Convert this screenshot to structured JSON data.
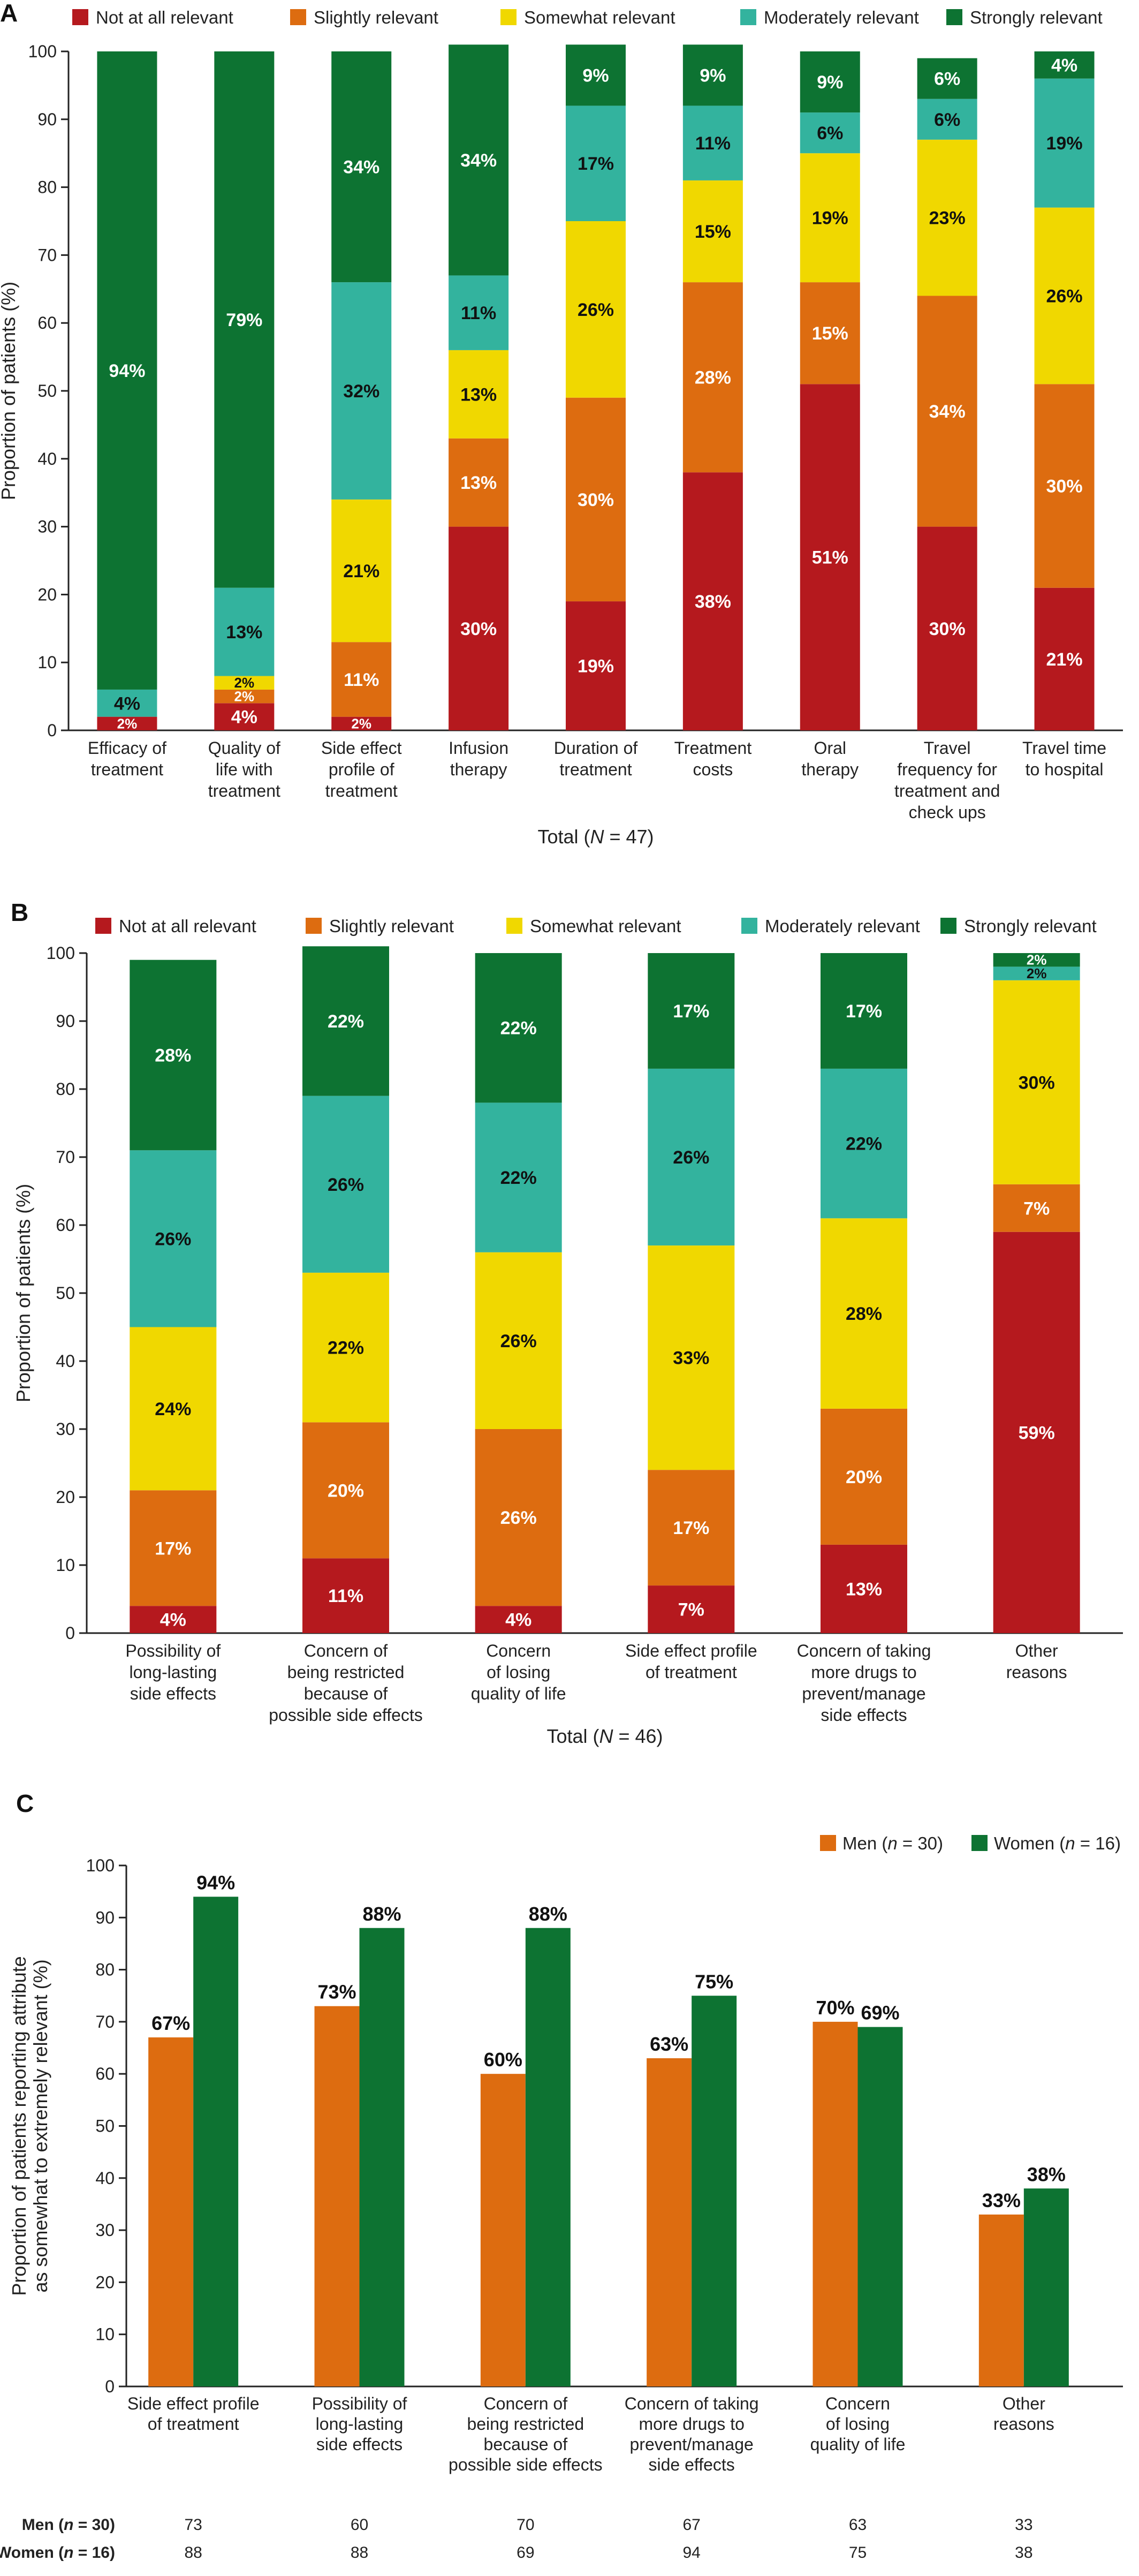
{
  "colors": {
    "not_at_all": "#b5191e",
    "slightly": "#dd6c10",
    "somewhat": "#f0d800",
    "moderately": "#33b39e",
    "strongly": "#0d7332",
    "men": "#dd6c10",
    "women": "#0d7332"
  },
  "chart_data": [
    {
      "panel": "A",
      "type": "bar",
      "stacked": true,
      "ylabel": "Proportion of patients (%)",
      "xlabel": "Total (N = 47)",
      "xlabel_parts": {
        "pre": "Total (",
        "italic": "N",
        "post": " = 47)"
      },
      "ylim": [
        0,
        100
      ],
      "yticks": [
        "0",
        "10",
        "20",
        "30",
        "40",
        "50",
        "60",
        "70",
        "80",
        "90",
        "100"
      ],
      "legend_position": "top",
      "categories": [
        [
          "Efficacy of",
          "treatment"
        ],
        [
          "Quality of",
          "life with",
          "treatment"
        ],
        [
          "Side effect",
          "profile of",
          "treatment"
        ],
        [
          "Infusion",
          "therapy"
        ],
        [
          "Duration of",
          "treatment"
        ],
        [
          "Treatment",
          "costs"
        ],
        [
          "Oral",
          "therapy"
        ],
        [
          "Travel",
          "frequency for",
          "treatment and",
          "check ups"
        ],
        [
          "Travel time",
          "to hospital"
        ]
      ],
      "series": [
        {
          "name": "Not at all relevant",
          "color_key": "not_at_all",
          "values": [
            2,
            4,
            2,
            30,
            19,
            38,
            51,
            30,
            21
          ],
          "labels": [
            "2%",
            "4%",
            "2%",
            "30%",
            "19%",
            "38%",
            "51%",
            "30%",
            "21%"
          ]
        },
        {
          "name": "Slightly relevant",
          "color_key": "slightly",
          "values": [
            0,
            2,
            11,
            13,
            30,
            28,
            15,
            34,
            30
          ],
          "labels": [
            "",
            "2%",
            "11%",
            "13%",
            "30%",
            "28%",
            "15%",
            "34%",
            "30%"
          ]
        },
        {
          "name": "Somewhat relevant",
          "color_key": "somewhat",
          "values": [
            0,
            2,
            21,
            13,
            26,
            15,
            19,
            23,
            26
          ],
          "labels": [
            "",
            "2%",
            "21%",
            "13%",
            "26%",
            "15%",
            "19%",
            "23%",
            "26%"
          ]
        },
        {
          "name": "Moderately relevant",
          "color_key": "moderately",
          "values": [
            4,
            13,
            32,
            11,
            17,
            11,
            6,
            6,
            19
          ],
          "labels": [
            "4%",
            "13%",
            "32%",
            "11%",
            "17%",
            "11%",
            "6%",
            "6%",
            "19%"
          ]
        },
        {
          "name": "Strongly relevant",
          "color_key": "strongly",
          "values": [
            94,
            79,
            34,
            34,
            9,
            9,
            9,
            6,
            4
          ],
          "labels": [
            "94%",
            "79%",
            "34%",
            "34%",
            "9%",
            "9%",
            "9%",
            "6%",
            "4%"
          ]
        }
      ]
    },
    {
      "panel": "B",
      "type": "bar",
      "stacked": true,
      "ylabel": "Proportion of patients (%)",
      "xlabel": "Total (N = 46)",
      "xlabel_parts": {
        "pre": "Total (",
        "italic": "N",
        "post": " = 46)"
      },
      "ylim": [
        0,
        100
      ],
      "yticks": [
        "0",
        "10",
        "20",
        "30",
        "40",
        "50",
        "60",
        "70",
        "80",
        "90",
        "100"
      ],
      "legend_position": "top",
      "categories": [
        [
          "Possibility of",
          "long-lasting",
          "side effects"
        ],
        [
          "Concern of",
          "being restricted",
          "because of",
          "possible side effects"
        ],
        [
          "Concern",
          "of losing",
          "quality of life"
        ],
        [
          "Side effect profile",
          "of treatment"
        ],
        [
          "Concern of taking",
          "more drugs to",
          "prevent/manage",
          "side effects"
        ],
        [
          "Other",
          "reasons"
        ]
      ],
      "series": [
        {
          "name": "Not at all relevant",
          "color_key": "not_at_all",
          "values": [
            4,
            11,
            4,
            7,
            13,
            59
          ],
          "labels": [
            "4%",
            "11%",
            "4%",
            "7%",
            "13%",
            "59%"
          ]
        },
        {
          "name": "Slightly relevant",
          "color_key": "slightly",
          "values": [
            17,
            20,
            26,
            17,
            20,
            7
          ],
          "labels": [
            "17%",
            "20%",
            "26%",
            "17%",
            "20%",
            "7%"
          ]
        },
        {
          "name": "Somewhat relevant",
          "color_key": "somewhat",
          "values": [
            24,
            22,
            26,
            33,
            28,
            30
          ],
          "labels": [
            "24%",
            "22%",
            "26%",
            "33%",
            "28%",
            "30%"
          ]
        },
        {
          "name": "Moderately relevant",
          "color_key": "moderately",
          "values": [
            26,
            26,
            22,
            26,
            22,
            2
          ],
          "labels": [
            "26%",
            "26%",
            "22%",
            "26%",
            "22%",
            "2%"
          ]
        },
        {
          "name": "Strongly relevant",
          "color_key": "strongly",
          "values": [
            28,
            22,
            22,
            17,
            17,
            2
          ],
          "labels": [
            "28%",
            "22%",
            "22%",
            "17%",
            "17%",
            "2%"
          ]
        }
      ]
    },
    {
      "panel": "C",
      "type": "bar",
      "stacked": false,
      "ylabel_lines": [
        "Proportion of patients reporting attribute",
        "as somewhat to extremely relevant (%)"
      ],
      "ylim": [
        0,
        100
      ],
      "yticks": [
        "0",
        "10",
        "20",
        "30",
        "40",
        "50",
        "60",
        "70",
        "80",
        "90",
        "100"
      ],
      "legend_position": "top-right",
      "categories": [
        [
          "Side effect profile",
          "of treatment"
        ],
        [
          "Possibility of",
          "long-lasting",
          "side effects"
        ],
        [
          "Concern of",
          "being restricted",
          "because of",
          "possible side effects"
        ],
        [
          "Concern of taking",
          "more drugs to",
          "prevent/manage",
          "side effects"
        ],
        [
          "Concern",
          "of losing",
          "quality of life"
        ],
        [
          "Other",
          "reasons"
        ]
      ],
      "series": [
        {
          "name": "Men (n = 30)",
          "name_parts": {
            "pre": "Men (",
            "italic": "n",
            "post": " = 30)"
          },
          "color_key": "men",
          "values": [
            67,
            73,
            60,
            63,
            70,
            33
          ],
          "labels": [
            "67%",
            "73%",
            "60%",
            "63%",
            "70%",
            "33%"
          ]
        },
        {
          "name": "Women (n = 16)",
          "name_parts": {
            "pre": "Women (",
            "italic": "n",
            "post": " = 16)"
          },
          "color_key": "women",
          "values": [
            94,
            88,
            88,
            75,
            69,
            38
          ],
          "labels": [
            "94%",
            "88%",
            "88%",
            "75%",
            "69%",
            "38%"
          ]
        }
      ],
      "table": [
        {
          "label_parts": {
            "pre": "Men (",
            "italic": "n",
            "post": " = 30)"
          },
          "values": [
            "73",
            "60",
            "70",
            "67",
            "63",
            "33"
          ]
        },
        {
          "label_parts": {
            "pre": "Women (",
            "italic": "n",
            "post": " = 16)"
          },
          "values": [
            "88",
            "88",
            "69",
            "94",
            "75",
            "38"
          ]
        }
      ]
    }
  ]
}
